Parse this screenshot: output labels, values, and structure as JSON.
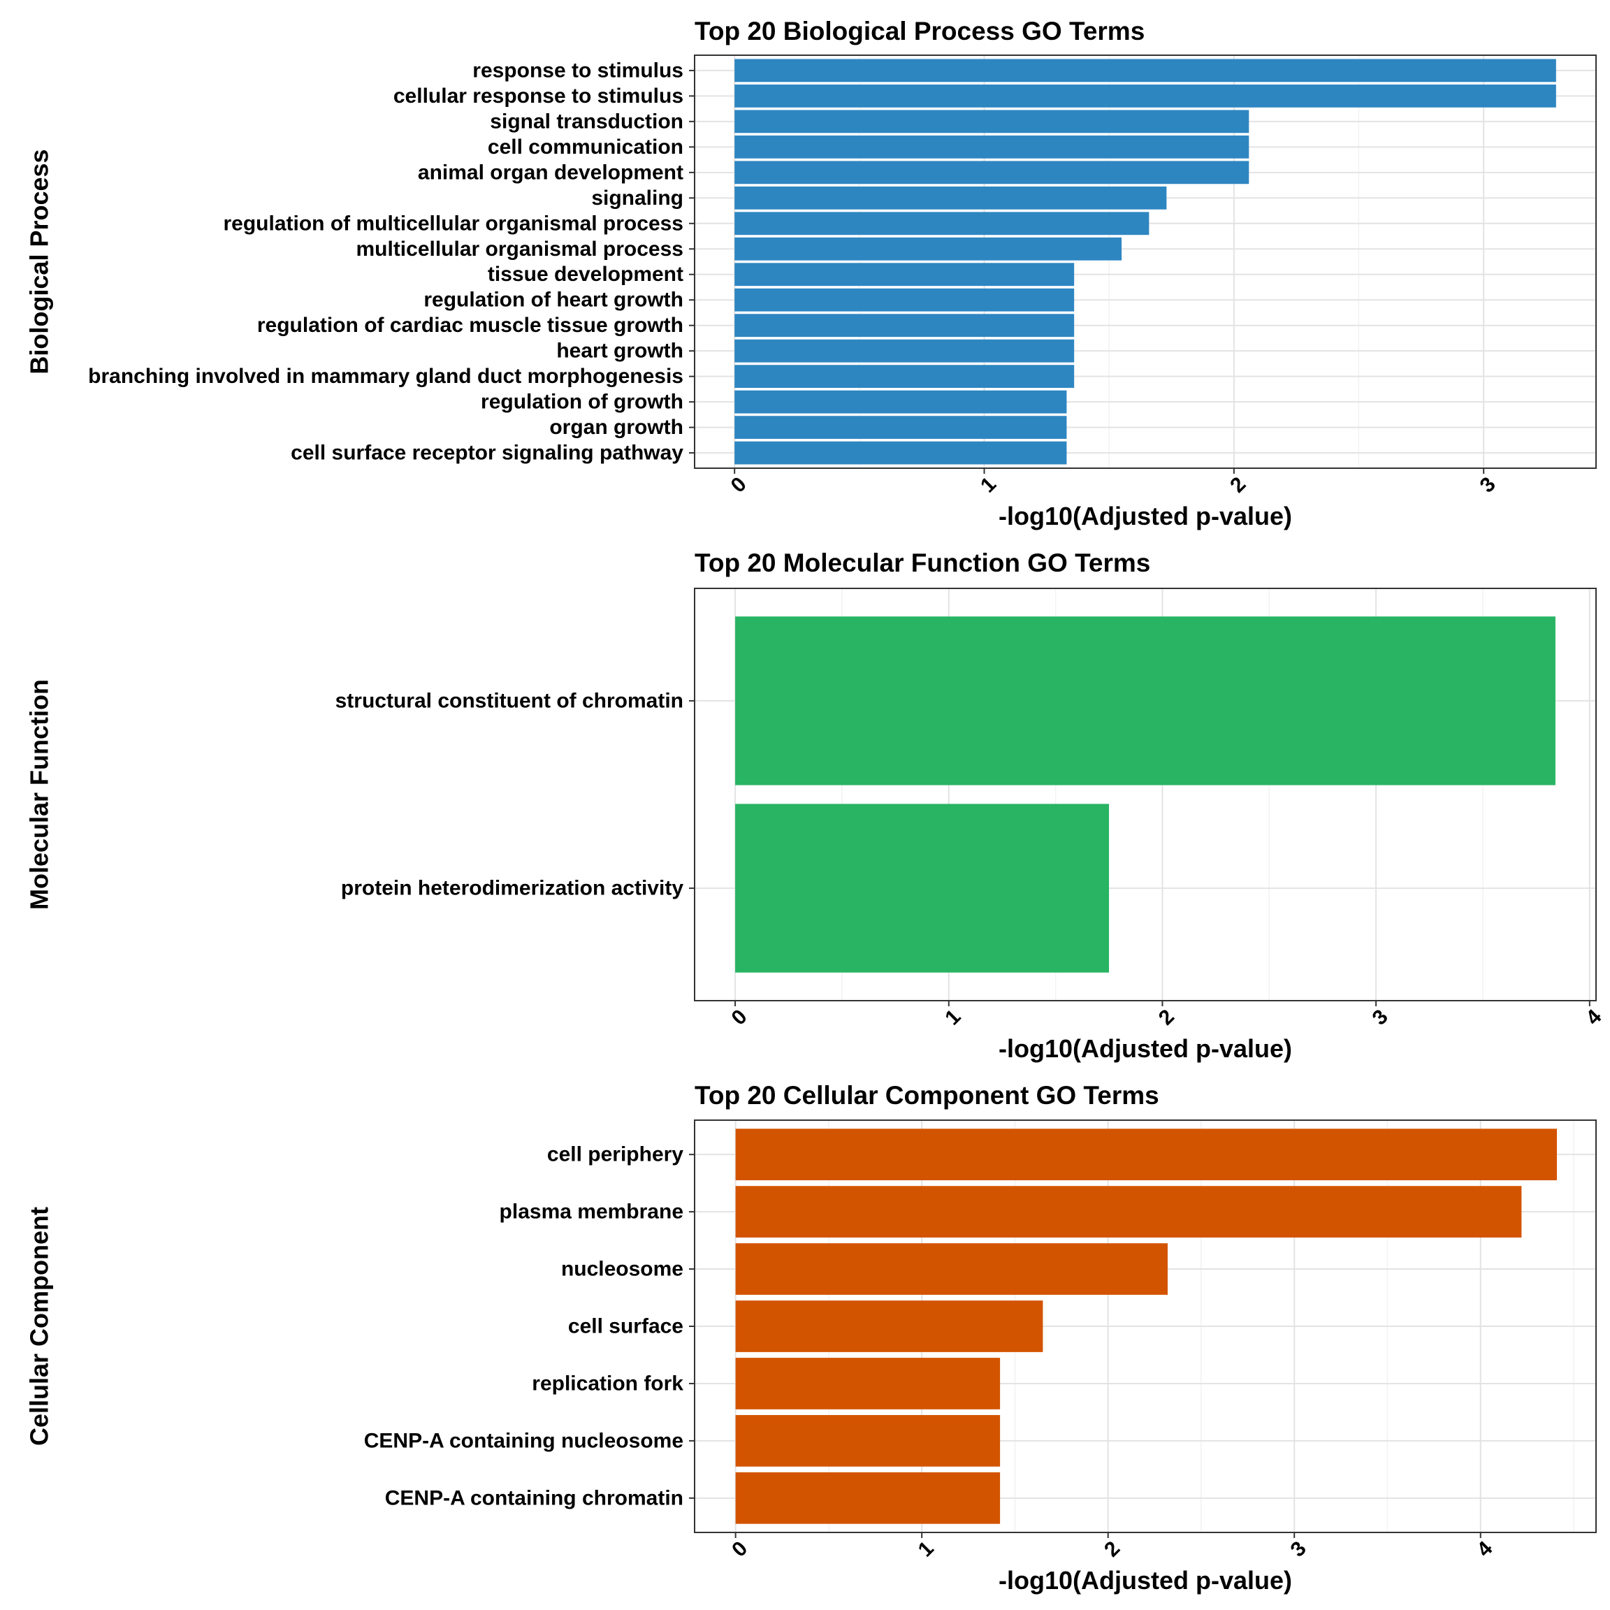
{
  "chart_data": [
    {
      "type": "bar",
      "orientation": "horizontal",
      "title": "Top 20 Biological Process GO Terms",
      "xlabel": "-log10(Adjusted p-value)",
      "ylabel": "Biological Process",
      "color": "#2E86C1",
      "xlim": [
        -0.16,
        3.45
      ],
      "xticks": [
        0,
        1,
        2,
        3
      ],
      "grid": true,
      "legend": "none",
      "categories": [
        "response to stimulus",
        "cellular response to stimulus",
        "signal transduction",
        "cell communication",
        "animal organ development",
        "signaling",
        "regulation of multicellular organismal process",
        "multicellular organismal process",
        "tissue development",
        "regulation of heart growth",
        "regulation of cardiac muscle tissue growth",
        "heart growth",
        "branching involved in mammary gland duct morphogenesis",
        "regulation of growth",
        "organ growth",
        "cell surface receptor signaling pathway"
      ],
      "values": [
        3.29,
        3.29,
        2.06,
        2.06,
        2.06,
        1.73,
        1.66,
        1.55,
        1.36,
        1.36,
        1.36,
        1.36,
        1.36,
        1.33,
        1.33,
        1.33
      ]
    },
    {
      "type": "bar",
      "orientation": "horizontal",
      "title": "Top 20 Molecular Function GO Terms",
      "xlabel": "-log10(Adjusted p-value)",
      "ylabel": "Molecular Function",
      "color": "#28B463",
      "xlim": [
        -0.19,
        4.03
      ],
      "xticks": [
        0,
        1,
        2,
        3,
        4
      ],
      "grid": true,
      "legend": "none",
      "categories": [
        "structural constituent of chromatin",
        "protein heterodimerization activity"
      ],
      "values": [
        3.84,
        1.75
      ]
    },
    {
      "type": "bar",
      "orientation": "horizontal",
      "title": "Top 20 Cellular Component GO Terms",
      "xlabel": "-log10(Adjusted p-value)",
      "ylabel": "Cellular Component",
      "color": "#D35400",
      "xlim": [
        -0.22,
        4.62
      ],
      "xticks": [
        0,
        1,
        2,
        3,
        4
      ],
      "grid": true,
      "legend": "none",
      "categories": [
        "cell periphery",
        "plasma membrane",
        "nucleosome",
        "cell surface",
        "replication fork",
        "CENP-A containing nucleosome",
        "CENP-A containing chromatin"
      ],
      "values": [
        4.41,
        4.22,
        2.32,
        1.65,
        1.42,
        1.42,
        1.42
      ]
    }
  ]
}
